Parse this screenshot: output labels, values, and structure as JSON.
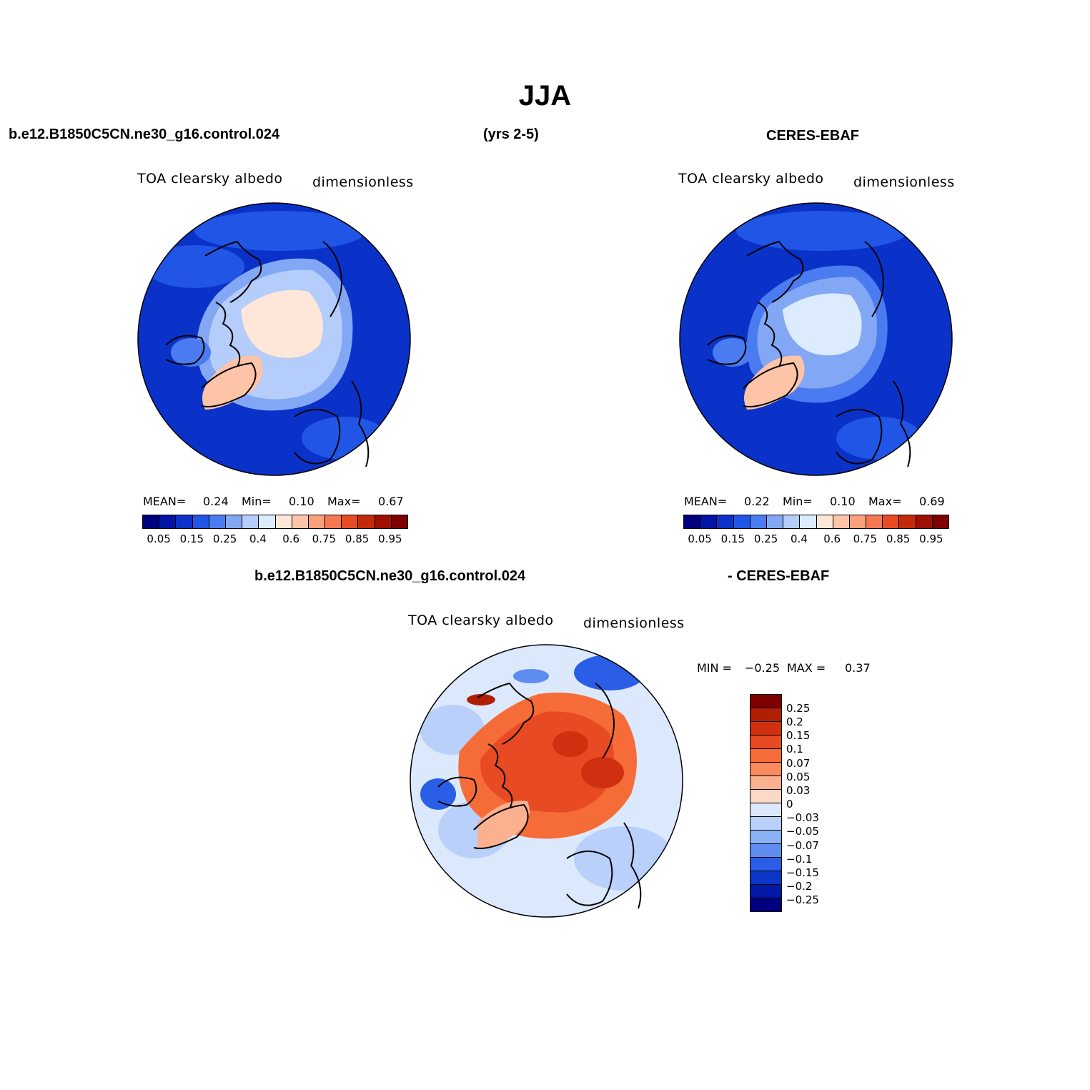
{
  "title": "JJA",
  "top_row": {
    "case_name": "b.e12.B1850C5CN.ne30_g16.control.024",
    "years": "(yrs 2-5)",
    "obs_name": "CERES-EBAF"
  },
  "panels": [
    {
      "variable": "TOA clearsky albedo",
      "units": "dimensionless",
      "mean_label": "MEAN=",
      "mean": "0.24",
      "min_label": "Min=",
      "min": "0.10",
      "max_label": "Max=",
      "max": "0.67"
    },
    {
      "variable": "TOA clearsky albedo",
      "units": "dimensionless",
      "mean_label": "MEAN=",
      "mean": "0.22",
      "min_label": "Min=",
      "min": "0.10",
      "max_label": "Max=",
      "max": "0.69"
    }
  ],
  "diff_panel": {
    "case_name": "b.e12.B1850C5CN.ne30_g16.control.024",
    "obs_name": "- CERES-EBAF",
    "variable": "TOA clearsky albedo",
    "units": "dimensionless",
    "min_label": "MIN =",
    "min": "−0.25",
    "max_label": "MAX =",
    "max": "0.37"
  },
  "colorbar_abs": {
    "ticks": [
      "0.05",
      "0.15",
      "0.25",
      "0.4",
      "0.6",
      "0.75",
      "0.85",
      "0.95"
    ],
    "colors": [
      "#00007f",
      "#0014a5",
      "#0a32c8",
      "#2055e6",
      "#4a7bf0",
      "#82a8f5",
      "#b4cdfa",
      "#dcebfe",
      "#fee6d8",
      "#fdc4a8",
      "#fba07c",
      "#f57850",
      "#e84a24",
      "#c42a0a",
      "#a01002",
      "#800000"
    ]
  },
  "colorbar_diff": {
    "ticks": [
      "0.25",
      "0.2",
      "0.15",
      "0.1",
      "0.07",
      "0.05",
      "0.03",
      "0",
      "−0.03",
      "−0.05",
      "−0.07",
      "−0.1",
      "−0.15",
      "−0.2",
      "−0.25"
    ],
    "colors": [
      "#800000",
      "#b01e04",
      "#d03010",
      "#e84a24",
      "#f56c38",
      "#f88a5e",
      "#fbb090",
      "#fdd8c4",
      "#dce9fc",
      "#b8d0fa",
      "#8cb2f6",
      "#5e8cf0",
      "#2a5ee6",
      "#0c36c8",
      "#0018a8",
      "#000080"
    ]
  }
}
